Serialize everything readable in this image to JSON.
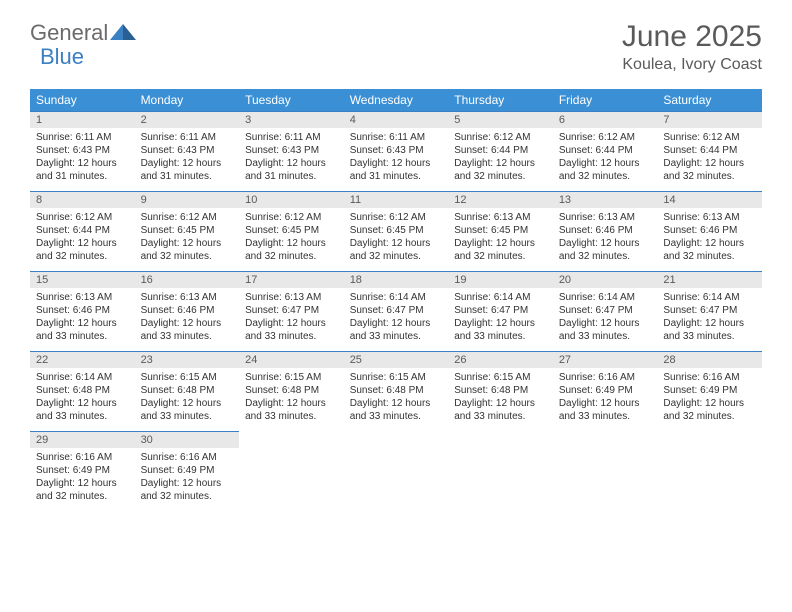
{
  "brand": {
    "part1": "General",
    "part2": "Blue"
  },
  "title": "June 2025",
  "location": "Koulea, Ivory Coast",
  "colors": {
    "header_bg": "#3b8fd4",
    "header_text": "#ffffff",
    "brand_gray": "#6b6b6b",
    "brand_blue": "#3b7fc4",
    "daynum_bg": "#e8e8e8",
    "border": "#3b7fc4",
    "text": "#333333"
  },
  "weekdays": [
    "Sunday",
    "Monday",
    "Tuesday",
    "Wednesday",
    "Thursday",
    "Friday",
    "Saturday"
  ],
  "weeks": [
    [
      {
        "n": "1",
        "sunrise": "6:11 AM",
        "sunset": "6:43 PM",
        "daylight": "12 hours and 31 minutes."
      },
      {
        "n": "2",
        "sunrise": "6:11 AM",
        "sunset": "6:43 PM",
        "daylight": "12 hours and 31 minutes."
      },
      {
        "n": "3",
        "sunrise": "6:11 AM",
        "sunset": "6:43 PM",
        "daylight": "12 hours and 31 minutes."
      },
      {
        "n": "4",
        "sunrise": "6:11 AM",
        "sunset": "6:43 PM",
        "daylight": "12 hours and 31 minutes."
      },
      {
        "n": "5",
        "sunrise": "6:12 AM",
        "sunset": "6:44 PM",
        "daylight": "12 hours and 32 minutes."
      },
      {
        "n": "6",
        "sunrise": "6:12 AM",
        "sunset": "6:44 PM",
        "daylight": "12 hours and 32 minutes."
      },
      {
        "n": "7",
        "sunrise": "6:12 AM",
        "sunset": "6:44 PM",
        "daylight": "12 hours and 32 minutes."
      }
    ],
    [
      {
        "n": "8",
        "sunrise": "6:12 AM",
        "sunset": "6:44 PM",
        "daylight": "12 hours and 32 minutes."
      },
      {
        "n": "9",
        "sunrise": "6:12 AM",
        "sunset": "6:45 PM",
        "daylight": "12 hours and 32 minutes."
      },
      {
        "n": "10",
        "sunrise": "6:12 AM",
        "sunset": "6:45 PM",
        "daylight": "12 hours and 32 minutes."
      },
      {
        "n": "11",
        "sunrise": "6:12 AM",
        "sunset": "6:45 PM",
        "daylight": "12 hours and 32 minutes."
      },
      {
        "n": "12",
        "sunrise": "6:13 AM",
        "sunset": "6:45 PM",
        "daylight": "12 hours and 32 minutes."
      },
      {
        "n": "13",
        "sunrise": "6:13 AM",
        "sunset": "6:46 PM",
        "daylight": "12 hours and 32 minutes."
      },
      {
        "n": "14",
        "sunrise": "6:13 AM",
        "sunset": "6:46 PM",
        "daylight": "12 hours and 32 minutes."
      }
    ],
    [
      {
        "n": "15",
        "sunrise": "6:13 AM",
        "sunset": "6:46 PM",
        "daylight": "12 hours and 33 minutes."
      },
      {
        "n": "16",
        "sunrise": "6:13 AM",
        "sunset": "6:46 PM",
        "daylight": "12 hours and 33 minutes."
      },
      {
        "n": "17",
        "sunrise": "6:13 AM",
        "sunset": "6:47 PM",
        "daylight": "12 hours and 33 minutes."
      },
      {
        "n": "18",
        "sunrise": "6:14 AM",
        "sunset": "6:47 PM",
        "daylight": "12 hours and 33 minutes."
      },
      {
        "n": "19",
        "sunrise": "6:14 AM",
        "sunset": "6:47 PM",
        "daylight": "12 hours and 33 minutes."
      },
      {
        "n": "20",
        "sunrise": "6:14 AM",
        "sunset": "6:47 PM",
        "daylight": "12 hours and 33 minutes."
      },
      {
        "n": "21",
        "sunrise": "6:14 AM",
        "sunset": "6:47 PM",
        "daylight": "12 hours and 33 minutes."
      }
    ],
    [
      {
        "n": "22",
        "sunrise": "6:14 AM",
        "sunset": "6:48 PM",
        "daylight": "12 hours and 33 minutes."
      },
      {
        "n": "23",
        "sunrise": "6:15 AM",
        "sunset": "6:48 PM",
        "daylight": "12 hours and 33 minutes."
      },
      {
        "n": "24",
        "sunrise": "6:15 AM",
        "sunset": "6:48 PM",
        "daylight": "12 hours and 33 minutes."
      },
      {
        "n": "25",
        "sunrise": "6:15 AM",
        "sunset": "6:48 PM",
        "daylight": "12 hours and 33 minutes."
      },
      {
        "n": "26",
        "sunrise": "6:15 AM",
        "sunset": "6:48 PM",
        "daylight": "12 hours and 33 minutes."
      },
      {
        "n": "27",
        "sunrise": "6:16 AM",
        "sunset": "6:49 PM",
        "daylight": "12 hours and 33 minutes."
      },
      {
        "n": "28",
        "sunrise": "6:16 AM",
        "sunset": "6:49 PM",
        "daylight": "12 hours and 32 minutes."
      }
    ],
    [
      {
        "n": "29",
        "sunrise": "6:16 AM",
        "sunset": "6:49 PM",
        "daylight": "12 hours and 32 minutes."
      },
      {
        "n": "30",
        "sunrise": "6:16 AM",
        "sunset": "6:49 PM",
        "daylight": "12 hours and 32 minutes."
      },
      null,
      null,
      null,
      null,
      null
    ]
  ],
  "labels": {
    "sunrise": "Sunrise: ",
    "sunset": "Sunset: ",
    "daylight": "Daylight: "
  }
}
